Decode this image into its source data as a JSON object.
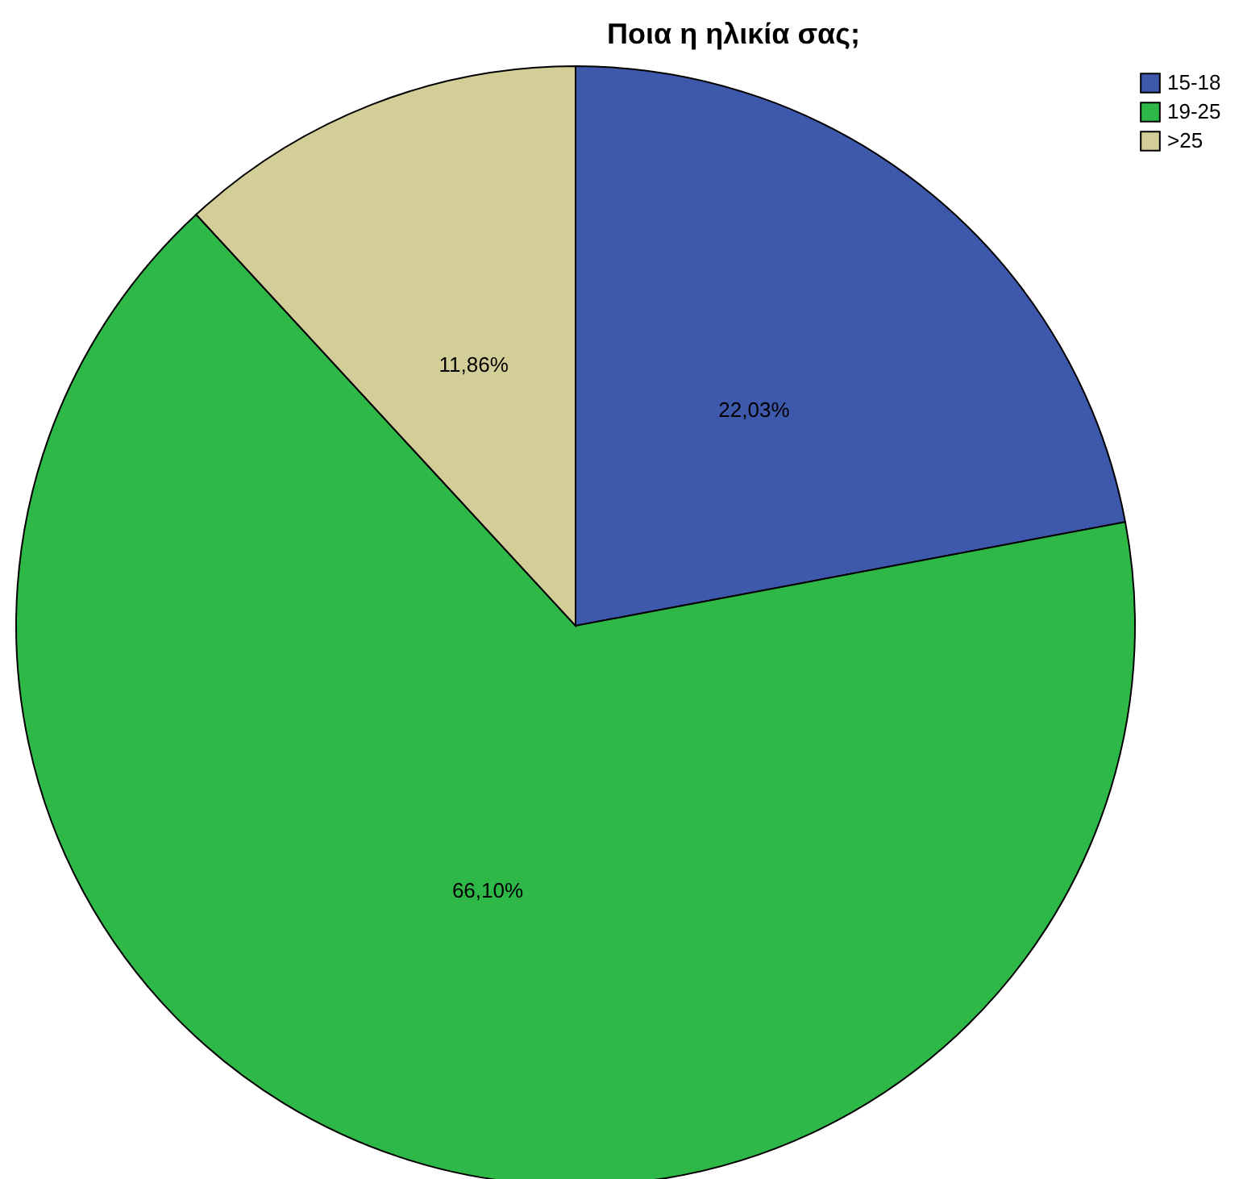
{
  "chart_data": {
    "type": "pie",
    "title": "Ποια η ηλικία σας;",
    "categories": [
      "15-18",
      "19-25",
      ">25"
    ],
    "values": [
      22.03,
      66.1,
      11.86
    ],
    "colors": [
      "#3e58ac",
      "#2eb848",
      "#d3ce97"
    ],
    "value_labels": [
      "22,03%",
      "66,10%",
      "11,86%"
    ],
    "legend": "top right"
  }
}
